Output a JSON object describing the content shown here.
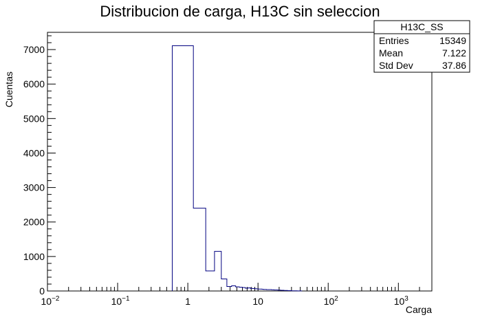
{
  "chart_data": {
    "type": "histogram",
    "title": "Distribucion de carga, H13C sin seleccion",
    "xlabel": "Carga",
    "ylabel": "Cuentas",
    "x_scale": "log",
    "xlim": [
      0.01,
      3000
    ],
    "ylim": [
      0,
      7500
    ],
    "x_ticks": [
      {
        "value": 0.01,
        "base": "10",
        "exp": "−2"
      },
      {
        "value": 0.1,
        "base": "10",
        "exp": "−1"
      },
      {
        "value": 1,
        "base": "1",
        "exp": ""
      },
      {
        "value": 10,
        "base": "10",
        "exp": ""
      },
      {
        "value": 100,
        "base": "10",
        "exp": "2"
      },
      {
        "value": 1000,
        "base": "10",
        "exp": "3"
      }
    ],
    "y_ticks": [
      0,
      1000,
      2000,
      3000,
      4000,
      5000,
      6000,
      7000
    ],
    "series": [
      {
        "color": "#000080",
        "bins": [
          {
            "x0": 0.6,
            "x1": 1.2,
            "y": 7110
          },
          {
            "x0": 1.2,
            "x1": 1.8,
            "y": 2400
          },
          {
            "x0": 1.8,
            "x1": 2.4,
            "y": 580
          },
          {
            "x0": 2.4,
            "x1": 3.0,
            "y": 1150
          },
          {
            "x0": 3.0,
            "x1": 3.6,
            "y": 350
          },
          {
            "x0": 3.6,
            "x1": 4.2,
            "y": 130
          },
          {
            "x0": 4.2,
            "x1": 4.8,
            "y": 150
          },
          {
            "x0": 4.8,
            "x1": 5.4,
            "y": 120
          },
          {
            "x0": 5.4,
            "x1": 6.0,
            "y": 110
          },
          {
            "x0": 6.0,
            "x1": 6.6,
            "y": 100
          },
          {
            "x0": 6.6,
            "x1": 7.2,
            "y": 80
          },
          {
            "x0": 7.2,
            "x1": 7.8,
            "y": 90
          },
          {
            "x0": 7.8,
            "x1": 8.4,
            "y": 75
          },
          {
            "x0": 8.4,
            "x1": 9.0,
            "y": 70
          },
          {
            "x0": 9.0,
            "x1": 9.6,
            "y": 65
          },
          {
            "x0": 9.6,
            "x1": 10.2,
            "y": 60
          },
          {
            "x0": 10.2,
            "x1": 10.8,
            "y": 55
          },
          {
            "x0": 10.8,
            "x1": 11.4,
            "y": 55
          },
          {
            "x0": 11.4,
            "x1": 12.0,
            "y": 50
          },
          {
            "x0": 12.0,
            "x1": 13.2,
            "y": 45
          },
          {
            "x0": 13.2,
            "x1": 14.4,
            "y": 40
          },
          {
            "x0": 14.4,
            "x1": 15.6,
            "y": 40
          },
          {
            "x0": 15.6,
            "x1": 16.8,
            "y": 35
          },
          {
            "x0": 16.8,
            "x1": 18.0,
            "y": 30
          },
          {
            "x0": 18.0,
            "x1": 19.2,
            "y": 30
          },
          {
            "x0": 19.2,
            "x1": 21.0,
            "y": 25
          },
          {
            "x0": 21.0,
            "x1": 23.4,
            "y": 20
          },
          {
            "x0": 23.4,
            "x1": 26.4,
            "y": 15
          },
          {
            "x0": 26.4,
            "x1": 30.0,
            "y": 10
          },
          {
            "x0": 30.0,
            "x1": 36.0,
            "y": 5
          },
          {
            "x0": 36.0,
            "x1": 42.0,
            "y": 2
          }
        ]
      }
    ]
  },
  "stats_box": {
    "name": "H13C_SS",
    "rows": [
      {
        "label": "Entries",
        "value": "15349"
      },
      {
        "label": "Mean",
        "value": "7.122"
      },
      {
        "label": "Std Dev",
        "value": "37.86"
      }
    ]
  }
}
